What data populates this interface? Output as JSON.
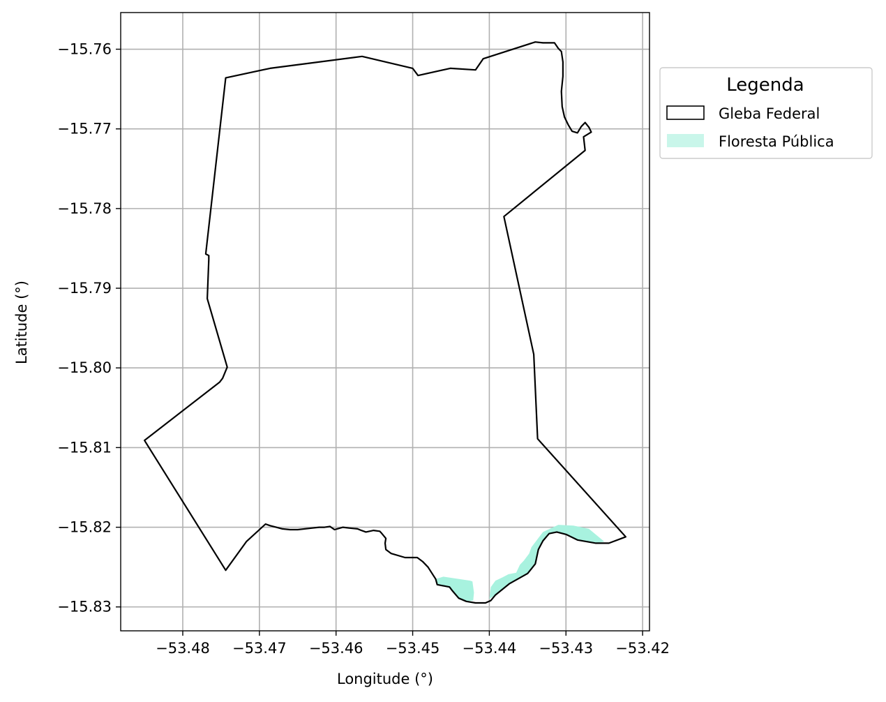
{
  "chart_data": {
    "type": "map",
    "xlabel": "Longitude (°)",
    "ylabel": "Latitude (°)",
    "xlim": [
      -53.4881,
      -53.4191
    ],
    "ylim": [
      -15.833,
      -15.7554
    ],
    "xticks": [
      -53.48,
      -53.47,
      -53.46,
      -53.45,
      -53.44,
      -53.43,
      -53.42
    ],
    "yticks": [
      -15.76,
      -15.77,
      -15.78,
      -15.79,
      -15.8,
      -15.81,
      -15.82,
      -15.83
    ],
    "xtick_labels": [
      "−53.48",
      "−53.47",
      "−53.46",
      "−53.45",
      "−53.44",
      "−53.43",
      "−53.42"
    ],
    "ytick_labels": [
      "−15.76",
      "−15.77",
      "−15.78",
      "−15.79",
      "−15.80",
      "−15.81",
      "−15.82",
      "−15.83"
    ],
    "grid": true,
    "legend": {
      "title": "Legenda",
      "placement": "outside-right-top",
      "entries": [
        {
          "label": "Gleba Federal",
          "style": "outline",
          "color": "#000000"
        },
        {
          "label": "Floresta Pública",
          "style": "fill",
          "color": "#a8f2df"
        }
      ]
    },
    "layers": [
      {
        "name": "Gleba Federal",
        "style": "outline",
        "color": "#000000",
        "coordinates": [
          [
            -53.4744,
            -15.7636
          ],
          [
            -53.4686,
            -15.7624
          ],
          [
            -53.4566,
            -15.7609
          ],
          [
            -53.45,
            -15.7624
          ],
          [
            -53.4493,
            -15.7633
          ],
          [
            -53.4451,
            -15.7624
          ],
          [
            -53.4418,
            -15.7626
          ],
          [
            -53.4408,
            -15.7612
          ],
          [
            -53.434,
            -15.7591
          ],
          [
            -53.433,
            -15.7592
          ],
          [
            -53.4315,
            -15.7592
          ],
          [
            -53.431,
            -15.7599
          ],
          [
            -53.4306,
            -15.7603
          ],
          [
            -53.4304,
            -15.7616
          ],
          [
            -53.4304,
            -15.7634
          ],
          [
            -53.4306,
            -15.7653
          ],
          [
            -53.4305,
            -15.7672
          ],
          [
            -53.4302,
            -15.7685
          ],
          [
            -53.4297,
            -15.7695
          ],
          [
            -53.4292,
            -15.7703
          ],
          [
            -53.4285,
            -15.7705
          ],
          [
            -53.428,
            -15.7697
          ],
          [
            -53.4275,
            -15.7692
          ],
          [
            -53.427,
            -15.7698
          ],
          [
            -53.4267,
            -15.7704
          ],
          [
            -53.4277,
            -15.771
          ],
          [
            -53.4275,
            -15.7727
          ],
          [
            -53.4381,
            -15.781
          ],
          [
            -53.4342,
            -15.7983
          ],
          [
            -53.4337,
            -15.8089
          ],
          [
            -53.4222,
            -15.8212
          ],
          [
            -53.4244,
            -15.822
          ],
          [
            -53.4261,
            -15.822
          ],
          [
            -53.4285,
            -15.8216
          ],
          [
            -53.43,
            -15.8209
          ],
          [
            -53.4312,
            -15.8206
          ],
          [
            -53.4322,
            -15.8208
          ],
          [
            -53.433,
            -15.8217
          ],
          [
            -53.4336,
            -15.8228
          ],
          [
            -53.434,
            -15.8246
          ],
          [
            -53.435,
            -15.8258
          ],
          [
            -53.4374,
            -15.8271
          ],
          [
            -53.4392,
            -15.8285
          ],
          [
            -53.4398,
            -15.8292
          ],
          [
            -53.4405,
            -15.8295
          ],
          [
            -53.4418,
            -15.8295
          ],
          [
            -53.443,
            -15.8293
          ],
          [
            -53.444,
            -15.8289
          ],
          [
            -53.4448,
            -15.828
          ],
          [
            -53.4452,
            -15.8275
          ],
          [
            -53.4468,
            -15.8272
          ],
          [
            -53.447,
            -15.8265
          ],
          [
            -53.448,
            -15.825
          ],
          [
            -53.4487,
            -15.8243
          ],
          [
            -53.4494,
            -15.8238
          ],
          [
            -53.451,
            -15.8238
          ],
          [
            -53.4528,
            -15.8233
          ],
          [
            -53.4535,
            -15.8228
          ],
          [
            -53.4536,
            -15.822
          ],
          [
            -53.4535,
            -15.8214
          ],
          [
            -53.4541,
            -15.8207
          ],
          [
            -53.4543,
            -15.8205
          ],
          [
            -53.4551,
            -15.8204
          ],
          [
            -53.4561,
            -15.8206
          ],
          [
            -53.4567,
            -15.8204
          ],
          [
            -53.4572,
            -15.8202
          ],
          [
            -53.4583,
            -15.8201
          ],
          [
            -53.4591,
            -15.82
          ],
          [
            -53.4602,
            -15.8203
          ],
          [
            -53.4608,
            -15.8199
          ],
          [
            -53.4615,
            -15.82
          ],
          [
            -53.4622,
            -15.82
          ],
          [
            -53.4631,
            -15.8201
          ],
          [
            -53.465,
            -15.8203
          ],
          [
            -53.466,
            -15.8203
          ],
          [
            -53.467,
            -15.8202
          ],
          [
            -53.4678,
            -15.82
          ],
          [
            -53.4686,
            -15.8198
          ],
          [
            -53.4692,
            -15.8196
          ],
          [
            -53.4717,
            -15.8218
          ],
          [
            -53.4744,
            -15.8254
          ],
          [
            -53.485,
            -15.8091
          ],
          [
            -53.4752,
            -15.8018
          ],
          [
            -53.4748,
            -15.8013
          ],
          [
            -53.4742,
            -15.7999
          ],
          [
            -53.4768,
            -15.7913
          ],
          [
            -53.4766,
            -15.7864
          ],
          [
            -53.4766,
            -15.7859
          ],
          [
            -53.477,
            -15.7857
          ]
        ]
      },
      {
        "name": "Floresta Pública",
        "style": "fill",
        "color": "#a8f2df",
        "coordinates": [
          [
            -53.446,
            -15.8262
          ],
          [
            -53.4425,
            -15.8267
          ],
          [
            -53.4422,
            -15.8268
          ],
          [
            -53.442,
            -15.8282
          ],
          [
            -53.4421,
            -15.8292
          ],
          [
            -53.443,
            -15.8293
          ],
          [
            -53.444,
            -15.8289
          ],
          [
            -53.4448,
            -15.828
          ],
          [
            -53.4452,
            -15.8275
          ],
          [
            -53.4468,
            -15.8272
          ],
          [
            -53.447,
            -15.8265
          ]
        ]
      },
      {
        "name": "Floresta Pública",
        "style": "fill",
        "color": "#a8f2df",
        "coordinates": [
          [
            -53.44,
            -15.829
          ],
          [
            -53.4398,
            -15.8275
          ],
          [
            -53.4392,
            -15.8267
          ],
          [
            -53.4383,
            -15.8263
          ],
          [
            -53.4375,
            -15.8259
          ],
          [
            -53.4365,
            -15.8257
          ],
          [
            -53.436,
            -15.8247
          ],
          [
            -53.4355,
            -15.8242
          ],
          [
            -53.4348,
            -15.8233
          ],
          [
            -53.4345,
            -15.8225
          ],
          [
            -53.433,
            -15.8206
          ],
          [
            -53.431,
            -15.8197
          ],
          [
            -53.429,
            -15.8198
          ],
          [
            -53.427,
            -15.8202
          ],
          [
            -53.425,
            -15.8218
          ],
          [
            -53.4261,
            -15.822
          ],
          [
            -53.4285,
            -15.8216
          ],
          [
            -53.43,
            -15.8209
          ],
          [
            -53.4312,
            -15.8206
          ],
          [
            -53.4322,
            -15.8208
          ],
          [
            -53.433,
            -15.8217
          ],
          [
            -53.4336,
            -15.8228
          ],
          [
            -53.434,
            -15.8246
          ],
          [
            -53.435,
            -15.8258
          ],
          [
            -53.4374,
            -15.8271
          ],
          [
            -53.4392,
            -15.8285
          ]
        ]
      }
    ]
  }
}
